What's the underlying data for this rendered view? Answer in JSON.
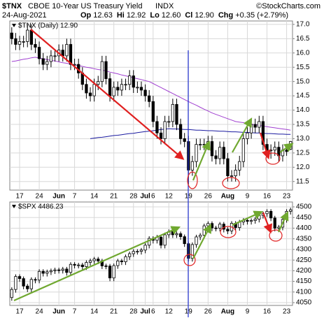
{
  "header": {
    "symbol": "$TNX",
    "name": "CBOE 10-Year US Treasury Yield",
    "exchange": "INDX",
    "source": "©StockCharts.com",
    "date": "24-Aug-2021",
    "stats": [
      {
        "label": "Op",
        "value": "12.63"
      },
      {
        "label": "Hi",
        "value": "12.92"
      },
      {
        "label": "Lo",
        "value": "12.60"
      },
      {
        "label": "Cl",
        "value": "12.90"
      },
      {
        "label": "Chg",
        "value": "+0.35 (+2.79%)"
      }
    ]
  },
  "chart_data": [
    {
      "type": "candlestick",
      "title": "$TNX (Daily) 12.90",
      "color": "#000000",
      "grid": true,
      "categories": [
        null,
        null,
        "17",
        null,
        null,
        null,
        null,
        "24",
        null,
        null,
        null,
        null,
        "Jun",
        null,
        null,
        null,
        "7",
        null,
        null,
        null,
        null,
        "14",
        null,
        null,
        null,
        null,
        "21",
        null,
        null,
        null,
        null,
        "28",
        null,
        null,
        "Jul",
        null,
        "6",
        null,
        null,
        null,
        "12",
        null,
        null,
        null,
        null,
        "19",
        null,
        null,
        null,
        null,
        "26",
        null,
        null,
        null,
        null,
        "Aug",
        null,
        null,
        null,
        null,
        "9",
        null,
        null,
        null,
        null,
        "16",
        null,
        null,
        null,
        null,
        "23",
        null
      ],
      "open": [
        16.7,
        16.5,
        16.3,
        16.4,
        16.4,
        16.8,
        16.3,
        16.2,
        15.8,
        15.6,
        15.7,
        15.9,
        15.9,
        16.1,
        15.9,
        16.3,
        15.6,
        15.6,
        15.3,
        14.9,
        14.6,
        14.5,
        14.9,
        15.0,
        15.7,
        15.1,
        14.5,
        14.8,
        14.7,
        14.9,
        14.9,
        15.2,
        14.8,
        14.8,
        14.7,
        14.5,
        14.3,
        13.6,
        13.2,
        13.0,
        13.6,
        13.6,
        14.2,
        13.5,
        13.0,
        12.9,
        11.9,
        12.2,
        12.8,
        12.8,
        12.8,
        12.9,
        12.4,
        12.3,
        12.7,
        12.3,
        11.7,
        11.7,
        11.9,
        12.2,
        13.0,
        13.2,
        13.5,
        13.4,
        13.6,
        12.8,
        12.6,
        12.6,
        12.7,
        12.4,
        12.6,
        12.63
      ],
      "high": [
        16.9,
        16.7,
        16.6,
        16.6,
        17.0,
        17.0,
        16.5,
        16.4,
        16.0,
        15.9,
        16.1,
        16.1,
        16.3,
        16.3,
        16.5,
        16.5,
        15.8,
        15.8,
        15.5,
        15.1,
        14.8,
        15.1,
        15.2,
        15.9,
        15.9,
        15.3,
        15.0,
        15.0,
        15.1,
        15.1,
        15.4,
        15.4,
        15.0,
        15.0,
        14.9,
        14.7,
        14.5,
        13.8,
        13.4,
        13.8,
        13.8,
        14.4,
        14.4,
        13.7,
        13.2,
        13.1,
        12.4,
        13.0,
        13.0,
        13.0,
        13.1,
        13.1,
        12.6,
        12.9,
        12.9,
        12.5,
        11.9,
        12.1,
        12.4,
        13.2,
        13.4,
        13.7,
        13.7,
        13.8,
        13.8,
        13.0,
        12.8,
        12.9,
        12.9,
        12.8,
        12.8,
        12.92
      ],
      "low": [
        16.3,
        16.1,
        16.1,
        16.2,
        16.2,
        16.1,
        16.0,
        15.6,
        15.4,
        15.4,
        15.5,
        15.7,
        15.7,
        15.7,
        15.7,
        15.4,
        15.4,
        15.1,
        14.7,
        14.4,
        14.3,
        14.3,
        14.7,
        14.8,
        14.9,
        14.3,
        14.3,
        14.5,
        14.5,
        14.7,
        14.7,
        14.6,
        14.6,
        14.5,
        14.3,
        14.1,
        13.4,
        13.0,
        12.8,
        12.8,
        13.4,
        13.4,
        13.3,
        12.8,
        12.7,
        11.4,
        11.7,
        12.0,
        12.6,
        12.6,
        12.6,
        12.2,
        12.1,
        12.1,
        12.1,
        11.5,
        11.5,
        11.5,
        11.7,
        12.0,
        12.8,
        13.0,
        13.2,
        13.2,
        12.6,
        12.4,
        12.3,
        12.4,
        12.2,
        12.2,
        12.4,
        12.6
      ],
      "close": [
        16.5,
        16.3,
        16.4,
        16.4,
        16.8,
        16.3,
        16.2,
        15.8,
        15.6,
        15.7,
        15.9,
        15.9,
        16.1,
        15.9,
        16.3,
        15.6,
        15.6,
        15.3,
        14.9,
        14.6,
        14.5,
        14.9,
        15.0,
        15.7,
        15.1,
        14.5,
        14.8,
        14.7,
        14.9,
        14.9,
        15.2,
        14.8,
        14.8,
        14.7,
        14.5,
        14.3,
        13.6,
        13.2,
        13.0,
        13.6,
        13.6,
        14.2,
        13.5,
        13.0,
        12.9,
        11.9,
        12.2,
        12.8,
        12.8,
        12.8,
        12.9,
        12.4,
        12.3,
        12.7,
        12.3,
        11.7,
        11.7,
        11.9,
        12.2,
        13.0,
        13.2,
        13.5,
        13.4,
        13.6,
        12.8,
        12.6,
        12.6,
        12.7,
        12.4,
        12.6,
        12.55,
        12.9
      ],
      "overlays": [
        {
          "color": "#a040d0",
          "values": [
            15.7,
            15.72,
            15.75,
            15.78,
            15.8,
            15.83,
            15.85,
            15.82,
            15.8,
            15.77,
            15.74,
            15.72,
            15.69,
            15.66,
            15.64,
            15.61,
            15.58,
            15.56,
            15.53,
            15.5,
            15.48,
            15.45,
            15.42,
            15.4,
            15.37,
            15.33,
            15.3,
            15.27,
            15.23,
            15.2,
            15.17,
            15.13,
            15.1,
            15.07,
            15.03,
            15.0,
            14.93,
            14.86,
            14.79,
            14.72,
            14.65,
            14.58,
            14.51,
            14.44,
            14.37,
            14.3,
            14.23,
            14.17,
            14.1,
            14.03,
            13.97,
            13.9,
            13.85,
            13.8,
            13.75,
            13.7,
            13.65,
            13.6,
            13.58,
            13.56,
            13.53,
            13.51,
            13.49,
            13.47,
            13.44,
            13.42,
            13.4,
            13.38,
            13.36,
            13.34,
            13.32,
            13.3
          ]
        },
        {
          "color": "#1a1aa0",
          "values": [
            null,
            null,
            null,
            null,
            null,
            null,
            null,
            null,
            null,
            null,
            null,
            null,
            null,
            null,
            null,
            null,
            null,
            null,
            null,
            null,
            13.0,
            13.02,
            13.04,
            13.05,
            13.07,
            13.09,
            13.11,
            13.12,
            13.14,
            13.16,
            13.18,
            13.19,
            13.21,
            13.23,
            13.25,
            13.26,
            13.28,
            13.3,
            13.32,
            13.33,
            13.35,
            13.34,
            13.34,
            13.33,
            13.32,
            13.32,
            13.31,
            13.3,
            13.3,
            13.29,
            13.28,
            13.28,
            13.27,
            13.26,
            13.26,
            13.25,
            13.24,
            13.24,
            13.23,
            13.22,
            13.22,
            13.21,
            13.2,
            13.2,
            13.19,
            13.18,
            13.18,
            13.17,
            13.16,
            13.16,
            13.15,
            13.15
          ]
        }
      ],
      "ylim": [
        11.2,
        17.12
      ],
      "yticks": [
        11.5,
        {
          "value": 12,
          "label": "12.0"
        },
        12.5,
        {
          "value": 13,
          "label": "13.0"
        },
        13.5,
        {
          "value": 14,
          "label": "14.0"
        },
        14.5,
        {
          "value": 15,
          "label": "15.0"
        },
        15.5,
        {
          "value": 16,
          "label": "16.0"
        },
        16.5,
        {
          "value": 17,
          "label": "17.0"
        }
      ]
    },
    {
      "type": "candlestick",
      "title": "$SPX 4486.23",
      "color": "#000000",
      "grid": true,
      "categories": [
        null,
        null,
        "17",
        null,
        null,
        null,
        null,
        "24",
        null,
        null,
        null,
        null,
        "Jun",
        null,
        null,
        null,
        "7",
        null,
        null,
        null,
        null,
        "14",
        null,
        null,
        null,
        null,
        "21",
        null,
        null,
        null,
        null,
        "28",
        null,
        null,
        "Jul",
        null,
        "6",
        null,
        null,
        null,
        "12",
        null,
        null,
        null,
        null,
        "19",
        null,
        null,
        null,
        null,
        "26",
        null,
        null,
        null,
        null,
        "Aug",
        null,
        null,
        null,
        null,
        "9",
        null,
        null,
        null,
        null,
        "16",
        null,
        null,
        null,
        null,
        "23",
        null
      ],
      "open": [
        4074,
        4112,
        4173,
        4163,
        4128,
        4115,
        4159,
        4156,
        4197,
        4188,
        4195,
        4200,
        4204,
        4202,
        4208,
        4192,
        4230,
        4226,
        4227,
        4219,
        4239,
        4247,
        4255,
        4246,
        4223,
        4222,
        4166,
        4224,
        4246,
        4242,
        4266,
        4280,
        4291,
        4291,
        4297,
        4320,
        4352,
        4343,
        4358,
        4320,
        4369,
        4384,
        4369,
        4374,
        4360,
        4327,
        4258,
        4323,
        4359,
        4367,
        4411,
        4422,
        4401,
        4400,
        4419,
        4395,
        4387,
        4423,
        4403,
        4429,
        4437,
        4432,
        4436,
        4442,
        4460,
        4468,
        4479,
        4448,
        4400,
        4405,
        4441,
        4479
      ],
      "high": [
        4122,
        4183,
        4183,
        4173,
        4138,
        4169,
        4169,
        4207,
        4207,
        4205,
        4210,
        4214,
        4214,
        4218,
        4218,
        4240,
        4240,
        4237,
        4237,
        4249,
        4257,
        4265,
        4265,
        4256,
        4233,
        4232,
        4234,
        4256,
        4256,
        4276,
        4290,
        4301,
        4301,
        4307,
        4330,
        4362,
        4362,
        4368,
        4368,
        4379,
        4394,
        4394,
        4384,
        4384,
        4370,
        4337,
        4333,
        4369,
        4377,
        4421,
        4432,
        4432,
        4411,
        4429,
        4429,
        4405,
        4433,
        4433,
        4439,
        4447,
        4447,
        4446,
        4452,
        4470,
        4478,
        4489,
        4489,
        4458,
        4415,
        4451,
        4489,
        4496
      ],
      "low": [
        4059,
        4097,
        4148,
        4113,
        4100,
        4100,
        4141,
        4141,
        4173,
        4173,
        4180,
        4185,
        4187,
        4187,
        4177,
        4177,
        4211,
        4211,
        4204,
        4204,
        4224,
        4232,
        4231,
        4208,
        4207,
        4151,
        4151,
        4209,
        4227,
        4227,
        4251,
        4265,
        4276,
        4276,
        4282,
        4305,
        4328,
        4328,
        4305,
        4305,
        4354,
        4354,
        4354,
        4345,
        4312,
        4243,
        4243,
        4308,
        4344,
        4352,
        4396,
        4386,
        4385,
        4385,
        4380,
        4372,
        4372,
        4388,
        4388,
        4414,
        4417,
        4417,
        4421,
        4427,
        4445,
        4453,
        4433,
        4385,
        4385,
        4390,
        4426,
        4464
      ],
      "close": [
        4112,
        4173,
        4163,
        4128,
        4115,
        4159,
        4156,
        4197,
        4188,
        4195,
        4200,
        4204,
        4202,
        4208,
        4192,
        4230,
        4226,
        4227,
        4219,
        4239,
        4247,
        4255,
        4246,
        4223,
        4222,
        4166,
        4224,
        4246,
        4242,
        4266,
        4280,
        4291,
        4291,
        4297,
        4320,
        4352,
        4343,
        4358,
        4320,
        4369,
        4384,
        4369,
        4374,
        4360,
        4327,
        4258,
        4323,
        4359,
        4367,
        4411,
        4422,
        4401,
        4400,
        4419,
        4395,
        4387,
        4423,
        4403,
        4429,
        4437,
        4432,
        4436,
        4442,
        4460,
        4468,
        4479,
        4448,
        4400,
        4405,
        4441,
        4479,
        4486.23
      ],
      "ylim": [
        4037,
        4523
      ],
      "yticks": [
        4050,
        4100,
        4150,
        4200,
        4250,
        4300,
        4350,
        4400,
        4450,
        4500
      ]
    }
  ]
}
